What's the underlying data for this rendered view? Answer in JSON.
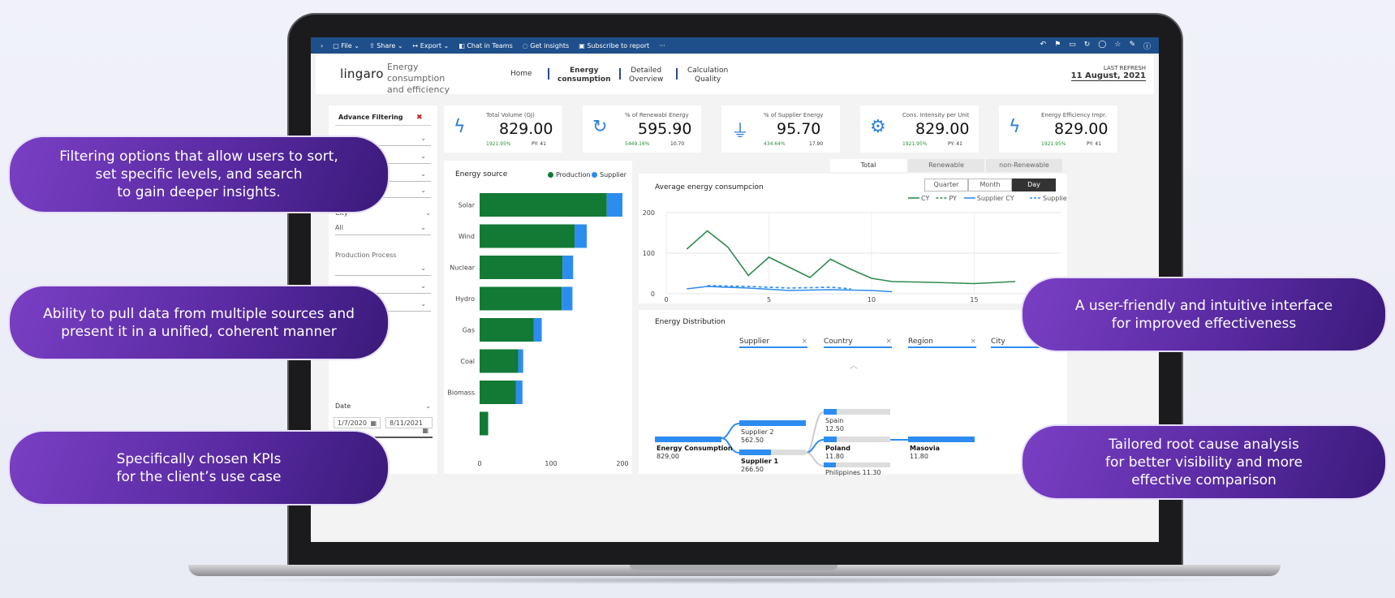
{
  "toolbar": {
    "items": [
      "File",
      "Share",
      "Export",
      "Chat in Teams",
      "Get insights",
      "Subscribe to report",
      "···"
    ]
  },
  "header": {
    "logo": "lingaro",
    "subtitle_1": "Energy consumption",
    "subtitle_2": "and efficiency",
    "nav": [
      {
        "l1": "Home",
        "l2": ""
      },
      {
        "l1": "Energy",
        "l2": "consumption"
      },
      {
        "l1": "Detailed",
        "l2": "Overview"
      },
      {
        "l1": "Calculation",
        "l2": "Quality"
      }
    ],
    "refresh_label": "LAST REFRESH",
    "refresh_date": "11 August, 2021"
  },
  "filters": {
    "title": "Advance Filtering",
    "city_label": "City",
    "all": "All",
    "process_label": "Production Process",
    "date_label": "Date",
    "date_from": "1/7/2020",
    "date_to": "8/11/2021"
  },
  "kpis": [
    {
      "label": "Total Volume (GJ)",
      "value": "829.00",
      "pct": "1921.95%",
      "py": "PY: 41",
      "icon": "bolt-icon"
    },
    {
      "label": "% of Renewabl Energy",
      "value": "595.90",
      "pct": "5449.16%",
      "py": "10.70",
      "icon": "renew-icon"
    },
    {
      "label": "% of Supplier Energy",
      "value": "95.70",
      "pct": "434.64%",
      "py": "17.90",
      "icon": "plug-icon"
    },
    {
      "label": "Cons. Intensity per Unit",
      "value": "829.00",
      "pct": "1921.95%",
      "py": "PY: 41",
      "icon": "gear-icon"
    },
    {
      "label": "Energy Efficiency Impr.",
      "value": "829.00",
      "pct": "1921.95%",
      "py": "PY: 41",
      "icon": "bolt-icon"
    }
  ],
  "tabs": [
    "Total",
    "Renewable",
    "non-Renewable"
  ],
  "periods": [
    "Quarter",
    "Month",
    "Day"
  ],
  "energy_source_title": "Energy source",
  "avg_title": "Average energy consumpcion",
  "dist": {
    "title": "Energy Distribution",
    "headers": [
      "Supplier",
      "Country",
      "Region",
      "City"
    ],
    "root_label": "Energy Consumption",
    "root_value": "829.00",
    "s2_label": "Supplier 2",
    "s2_value": "562.50",
    "s1_label": "Supplier 1",
    "s1_value": "266.50",
    "spain_label": "Spain",
    "spain_value": "12.50",
    "poland_label": "Poland",
    "poland_value": "11.80",
    "phil_label": "Philippines",
    "phil_value": "11.30",
    "masovia_label": "Masovia",
    "masovia_value": "11.80"
  },
  "pills": {
    "filtering": "Filtering options that allow users to sort,\nset specific levels, and search\nto gain deeper insights.",
    "sources": "Ability to pull data from multiple sources and\npresent it in a unified, coherent manner",
    "kpis": "Specifically chosen KPIs\nfor the client’s use case",
    "ui": "A user-friendly and intuitive interface\nfor improved effectiveness",
    "rca": "Tailored root cause analysis\nfor better visibility and more\neffective comparison"
  },
  "chart_data": [
    {
      "type": "bar",
      "orientation": "horizontal",
      "stacked": true,
      "title": "Energy source",
      "categories": [
        "Solar",
        "Wind",
        "Nuclear",
        "Hydro",
        "Gas",
        "Coal",
        "Biomass",
        ""
      ],
      "series": [
        {
          "name": "Production",
          "color": "#127a35",
          "values": [
            178,
            133,
            116,
            115,
            76,
            54,
            51,
            12
          ]
        },
        {
          "name": "Supplier",
          "color": "#2d8cf0",
          "values": [
            22,
            17,
            15,
            15,
            11,
            7,
            9,
            0
          ]
        }
      ],
      "xlim": [
        0,
        200
      ],
      "xticks": [
        0,
        100,
        200
      ]
    },
    {
      "type": "line",
      "title": "Average energy consumpcion",
      "xlim": [
        0,
        20
      ],
      "xticks": [
        0,
        5,
        10,
        15
      ],
      "ylim": [
        0,
        200
      ],
      "yticks": [
        0,
        100,
        200
      ],
      "series": [
        {
          "name": "CY",
          "color": "#2e8b4e",
          "dash": "",
          "points": [
            [
              1,
              110
            ],
            [
              2,
              155
            ],
            [
              3,
              115
            ],
            [
              4,
              45
            ],
            [
              5,
              90
            ],
            [
              6,
              65
            ],
            [
              7,
              40
            ],
            [
              8,
              85
            ],
            [
              9,
              60
            ],
            [
              10,
              38
            ],
            [
              11,
              30
            ],
            [
              13,
              28
            ],
            [
              15,
              25
            ],
            [
              17,
              30
            ]
          ]
        },
        {
          "name": "PY",
          "color": "#2e8b4e",
          "dash": "4,3",
          "points": []
        },
        {
          "name": "Supplier CY",
          "color": "#2d8cf0",
          "dash": "",
          "points": [
            [
              1,
              12
            ],
            [
              2,
              18
            ],
            [
              4,
              14
            ],
            [
              6,
              8
            ],
            [
              8,
              10
            ],
            [
              10,
              8
            ],
            [
              11,
              5
            ]
          ]
        },
        {
          "name": "Supplier PY",
          "color": "#2d8cf0",
          "dash": "4,3",
          "points": [
            [
              2,
              20
            ],
            [
              4,
              18
            ],
            [
              6,
              14
            ],
            [
              8,
              16
            ],
            [
              9,
              12
            ]
          ]
        }
      ]
    }
  ]
}
